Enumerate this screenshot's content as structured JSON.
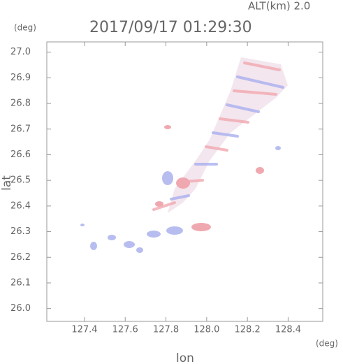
{
  "chart_data": {
    "type": "radar-field",
    "title": "2017/09/17 01:29:30",
    "subtitle": "ALT(km) 2.0",
    "x_label": "lon",
    "y_label": "lat",
    "x_unit": "(deg)",
    "y_unit": "(deg)",
    "xlim": [
      127.215,
      128.57
    ],
    "ylim": [
      25.95,
      27.04
    ],
    "xticks": [
      127.4,
      127.6,
      127.8,
      {
        "value": 128,
        "label": "128.0"
      },
      128.2,
      128.4
    ],
    "yticks": [
      {
        "value": 26,
        "label": "26.0"
      },
      26.1,
      26.2,
      26.3,
      26.4,
      26.5,
      26.6,
      26.7,
      26.8,
      26.9,
      {
        "value": 27,
        "label": "27.0"
      }
    ]
  }
}
